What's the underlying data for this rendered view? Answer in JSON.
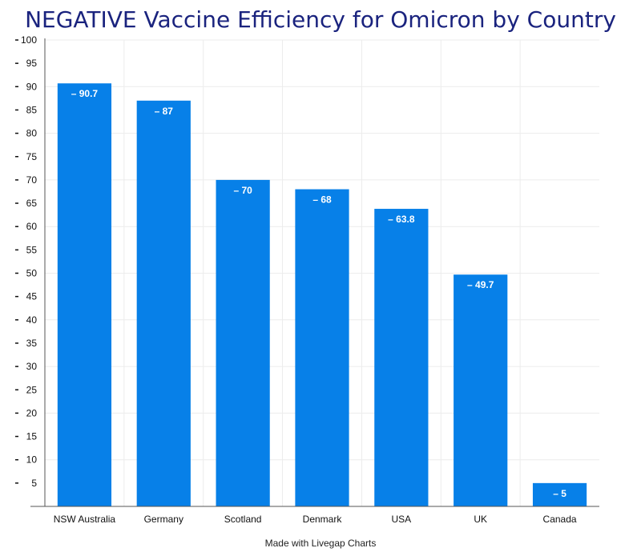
{
  "chart_data": {
    "type": "bar",
    "title": "NEGATIVE Vaccine Efficiency for Omicron by Country",
    "categories": [
      "NSW Australia",
      "Germany",
      "Scotland",
      "Denmark",
      "USA",
      "UK",
      "Canada"
    ],
    "values": [
      90.7,
      87,
      70,
      68,
      63.8,
      49.7,
      5
    ],
    "data_labels": [
      "– 90.7",
      "– 87",
      "– 70",
      "– 68",
      "– 63.8",
      "– 49.7",
      "– 5"
    ],
    "ylim": [
      0,
      100
    ],
    "yticks": [
      5,
      10,
      15,
      20,
      25,
      30,
      35,
      40,
      45,
      50,
      55,
      60,
      65,
      70,
      75,
      80,
      85,
      90,
      95,
      100
    ],
    "ytick_labels": [
      "5",
      "10",
      "15",
      "20",
      "25",
      "30",
      "35",
      "40",
      "45",
      "50",
      "55",
      "60",
      "65",
      "70",
      "75",
      "80",
      "85",
      "90",
      "95",
      "100"
    ],
    "grid": true,
    "bar_color": "#0780e8",
    "xlabel": "",
    "ylabel": ""
  },
  "footer": "Made with Livegap Charts"
}
